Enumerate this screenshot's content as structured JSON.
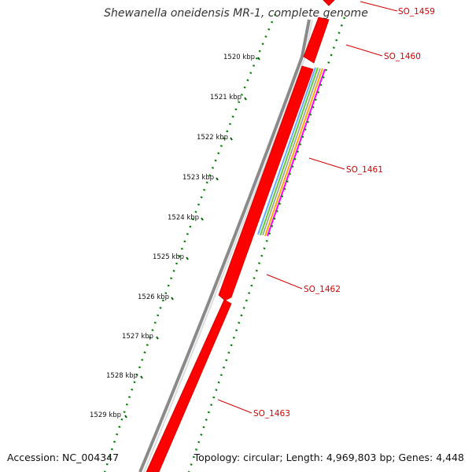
{
  "title": "Shewanella oneidensis MR-1, complete genome",
  "accession": "Accession: NC_004347",
  "summary": "Topology: circular; Length: 4,969,803 bp; Genes: 4,448",
  "scale_ticks": [
    "1520 kbp",
    "1521 kbp",
    "1522 kbp",
    "1523 kbp",
    "1524 kbp",
    "1525 kbp",
    "1526 kbp",
    "1527 kbp",
    "1528 kbp",
    "1529 kbp"
  ],
  "genes": [
    {
      "label": "SO_1459",
      "color": "#ff0000"
    },
    {
      "label": "SO_1460",
      "color": "#ff0000"
    },
    {
      "label": "SO_1461",
      "color": "#ff0000"
    },
    {
      "label": "SO_1462",
      "color": "#ff0000"
    },
    {
      "label": "SO_1463",
      "color": "#ff0000"
    }
  ],
  "colors": {
    "backbone": "#808080",
    "gene_fill": "#ff0000",
    "gene_stroke": "#cc0000",
    "label_text": "#d40000",
    "gc_dots": "#008000",
    "multi_feature": [
      "#66aaff",
      "#66cc33",
      "#ffaa00",
      "#ff00ff"
    ]
  }
}
